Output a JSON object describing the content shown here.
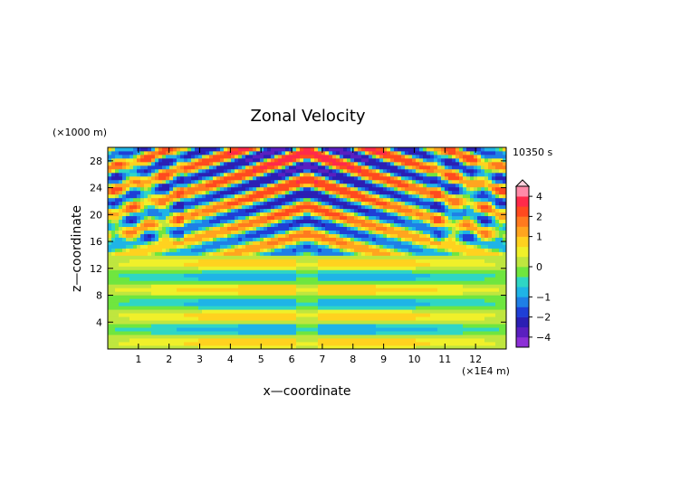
{
  "chart_data": {
    "type": "heatmap",
    "title": "Zonal Velocity",
    "xlabel": "x—coordinate",
    "ylabel": "z—coordinate",
    "x_unit": "(×1E4 m)",
    "y_unit": "(×1000 m)",
    "time_label": "10350 s",
    "xlim": [
      0,
      13
    ],
    "ylim": [
      0,
      30
    ],
    "x_ticks": [
      "1",
      "2",
      "3",
      "4",
      "5",
      "6",
      "7",
      "8",
      "9",
      "10",
      "11",
      "12"
    ],
    "y_ticks": [
      "4",
      "8",
      "12",
      "16",
      "20",
      "24",
      "28"
    ],
    "colorbar": {
      "range": [
        -5,
        5
      ],
      "tick_labels": [
        "4",
        "2",
        "1",
        "0",
        "−1",
        "−2",
        "−4"
      ],
      "tick_values": [
        4,
        2,
        1,
        0,
        -1,
        -2,
        -4
      ],
      "levels": [
        -5,
        -4,
        -3,
        -2,
        -1.5,
        -1,
        -0.5,
        -0.25,
        0,
        0.25,
        0.5,
        1,
        1.5,
        2,
        3,
        4,
        5
      ],
      "colors": [
        "#8c2fd6",
        "#5a1fc0",
        "#2b1fb4",
        "#1f3fd6",
        "#1f7fe6",
        "#1fb4e6",
        "#2fd6c4",
        "#6fe63f",
        "#bfe63f",
        "#f0f02a",
        "#ffd21f",
        "#ffa51f",
        "#ff7a1f",
        "#ff4a1f",
        "#ff2a4a",
        "#ff8aa8"
      ]
    }
  }
}
